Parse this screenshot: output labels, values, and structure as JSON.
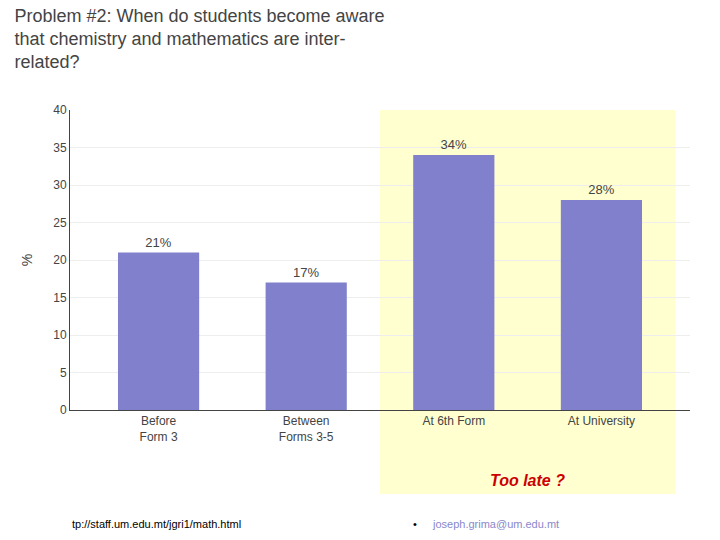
{
  "chart_data": {
    "type": "bar",
    "title": "Problem #2: When do students become aware\nthat chemistry and mathematics are inter-\nrelated?",
    "ylabel": "%",
    "categories": [
      "Before\nForm 3",
      "Between\nForms 3-5",
      "At 6th Form",
      "At University"
    ],
    "values": [
      21,
      17,
      34,
      28
    ],
    "value_labels": [
      "21%",
      "17%",
      "34%",
      "28%"
    ],
    "data_labels": true,
    "color": "#8080cc",
    "ylim": [
      0,
      40
    ],
    "yticks": [
      0,
      5,
      10,
      15,
      20,
      25,
      30,
      35,
      40
    ],
    "grid": true,
    "annotations": [
      {
        "text": "Too late ?",
        "color": "#cc0000",
        "categories": [
          "At 6th Form",
          "At University"
        ],
        "background": "#ffffd0"
      },
      {
        "text": "tp://staff.um.edu.mt/jgri1/math.html",
        "color": "#000000"
      },
      {
        "text": "•",
        "color": "#000000"
      },
      {
        "text": "joseph.grima@um.edu.mt",
        "color": "#8888cc"
      }
    ]
  }
}
